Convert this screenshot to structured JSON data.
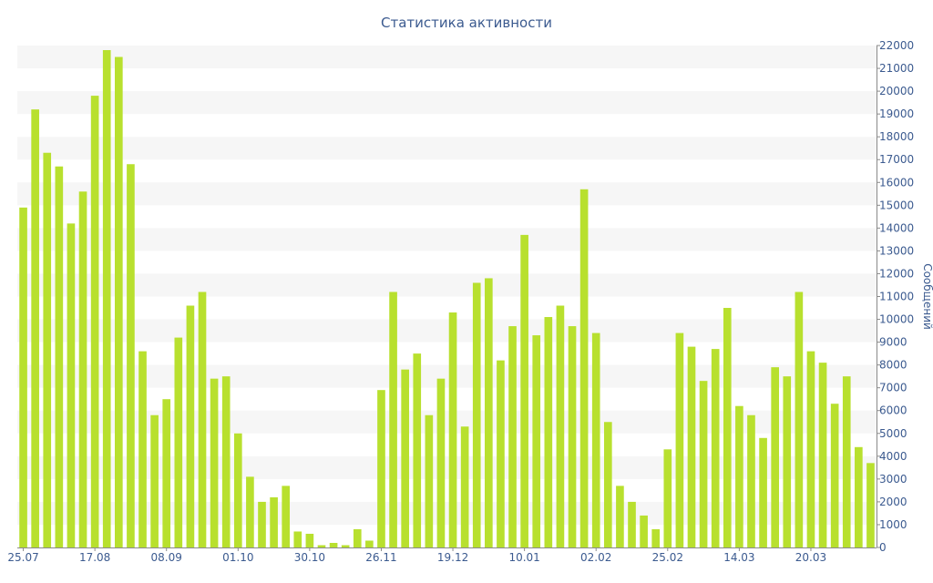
{
  "title": "Статистика активности",
  "chart_data": {
    "type": "bar",
    "title": "Статистика активности",
    "xlabel": "",
    "ylabel": "Сообщений",
    "ylim": [
      0,
      22000
    ],
    "y_ticks": [
      0,
      1000,
      2000,
      3000,
      4000,
      5000,
      6000,
      7000,
      8000,
      9000,
      10000,
      11000,
      12000,
      13000,
      14000,
      15000,
      16000,
      17000,
      18000,
      19000,
      20000,
      21000,
      22000
    ],
    "x_tick_labels": [
      "25.07",
      "17.08",
      "08.09",
      "01.10",
      "30.10",
      "26.11",
      "19.12",
      "10.01",
      "02.02",
      "25.02",
      "14.03",
      "20.03"
    ],
    "y_axis_side": "right",
    "grid": "horizontal alternating bands",
    "bar_color": "#b8e02e",
    "values": [
      14900,
      19200,
      17300,
      16700,
      14200,
      15600,
      19800,
      21800,
      21500,
      16800,
      8600,
      5800,
      6500,
      9200,
      10600,
      11200,
      7400,
      7500,
      5000,
      3100,
      2000,
      2200,
      2700,
      700,
      600,
      100,
      200,
      100,
      800,
      300,
      6900,
      11200,
      7800,
      8500,
      5800,
      7400,
      10300,
      5300,
      11600,
      11800,
      8200,
      9700,
      13700,
      9300,
      10100,
      10600,
      9700,
      15700,
      9400,
      5500,
      2700,
      2000,
      1400,
      800,
      4300,
      9400,
      8800,
      7300,
      8700,
      10500,
      6200,
      5800,
      4800,
      7900,
      7500,
      11200,
      8600,
      8100,
      6300,
      7500,
      4400,
      3700
    ]
  }
}
